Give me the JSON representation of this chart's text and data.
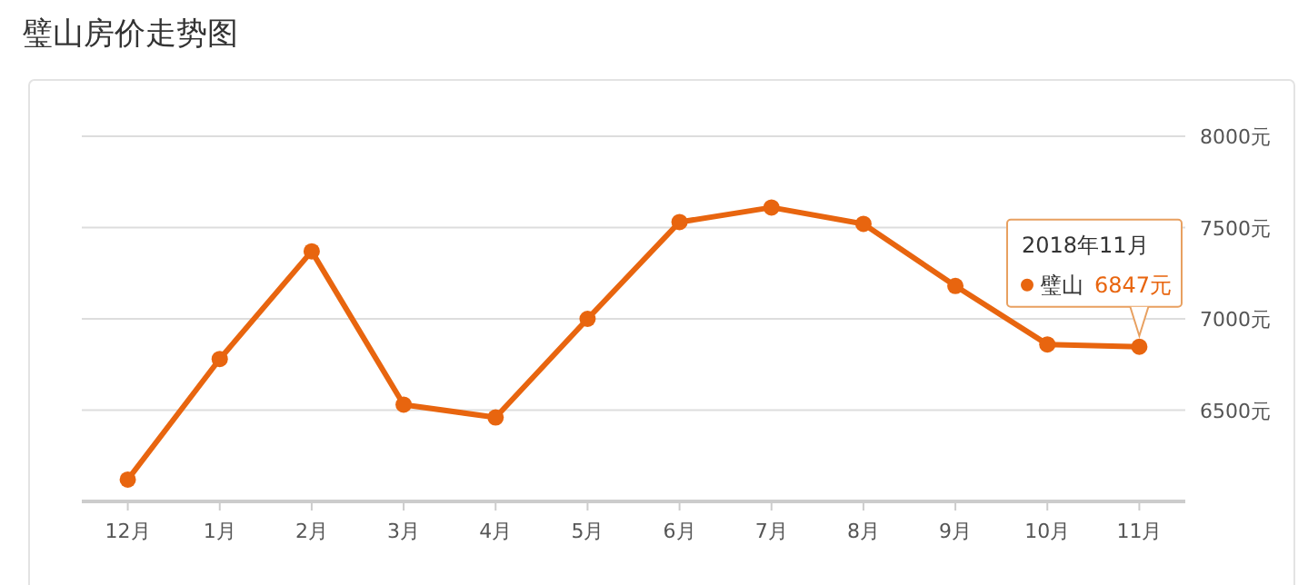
{
  "chart_data": {
    "type": "line",
    "title": "璧山房价走势图",
    "categories": [
      "12月",
      "1月",
      "2月",
      "3月",
      "4月",
      "5月",
      "6月",
      "7月",
      "8月",
      "9月",
      "10月",
      "11月"
    ],
    "series": [
      {
        "name": "璧山",
        "color": "#e8650f",
        "values": [
          6120,
          6780,
          7370,
          6530,
          6460,
          7000,
          7530,
          7610,
          7520,
          7180,
          6860,
          6847
        ],
        "value_labels": [
          null,
          null,
          null,
          null,
          null,
          null,
          null,
          null,
          null,
          null,
          null,
          "6847元"
        ]
      }
    ],
    "ylim": [
      6000,
      8000
    ],
    "yticks": [
      {
        "value": 6000,
        "label": null
      },
      {
        "value": 6500,
        "label": "6500元"
      },
      {
        "value": 7000,
        "label": "7000元"
      },
      {
        "value": 7500,
        "label": "7500元"
      },
      {
        "value": 8000,
        "label": "8000元"
      }
    ],
    "grid": "y",
    "marker": "circle",
    "line_style": "solid",
    "annotations": [
      "2018年11月"
    ]
  }
}
